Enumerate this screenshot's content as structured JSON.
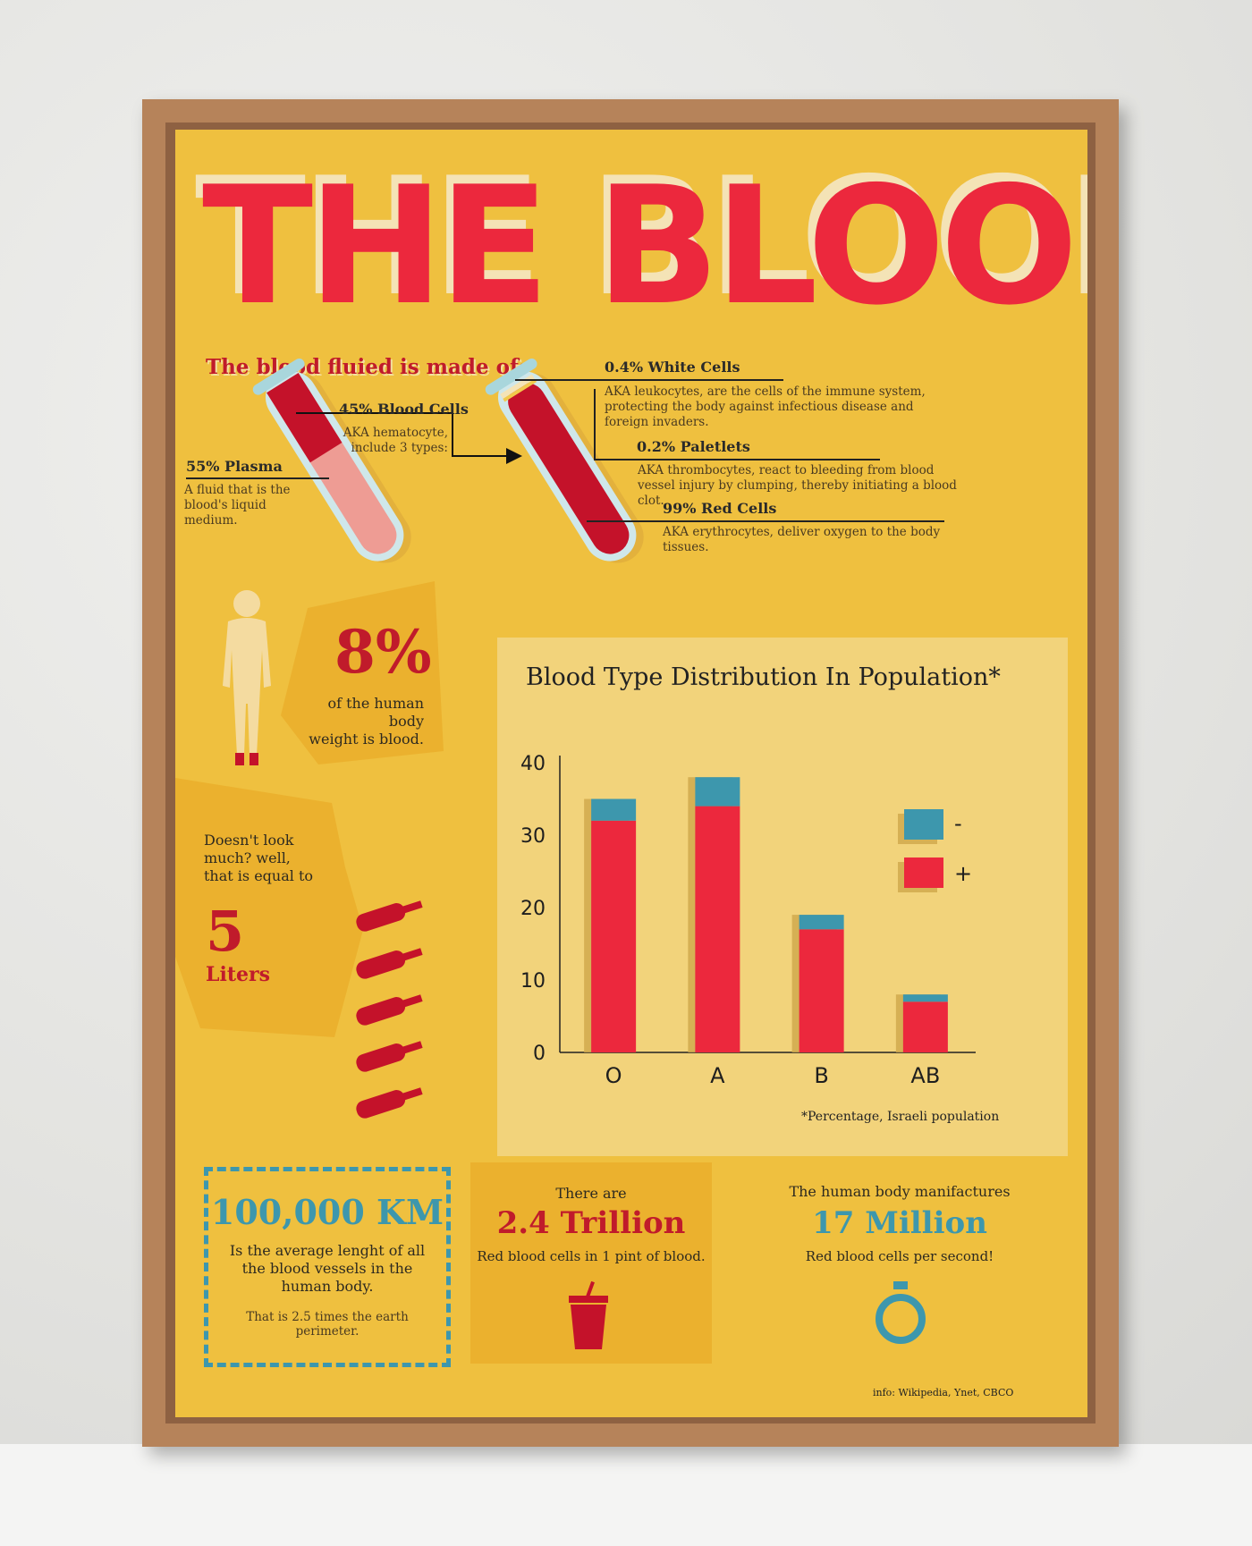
{
  "title": "THE BLOOD",
  "subtitle": "The blood fluied is made of:",
  "composition": {
    "plasma": {
      "label": "55% Plasma",
      "desc": "A fluid that is the blood's liquid medium."
    },
    "blood_cells": {
      "label": "45% Blood Cells",
      "desc_line1": "AKA hematocyte,",
      "desc_line2": "include 3 types:"
    },
    "white_cells": {
      "label": "0.4% White Cells",
      "desc": "AKA leukocytes, are the cells of the immune system, protecting the body against infectious disease and foreign invaders."
    },
    "platelets": {
      "label": "0.2% Paletlets",
      "desc": "AKA thrombocytes, react to bleeding from blood vessel injury by clumping, thereby initiating a blood clot."
    },
    "red_cells": {
      "label": "99% Red Cells",
      "desc": "AKA erythrocytes, deliver oxygen to the body tissues."
    }
  },
  "body_weight": {
    "value": "8%",
    "text_line1": "of the human body",
    "text_line2": "weight is blood."
  },
  "liters": {
    "text_line1": "Doesn't look",
    "text_line2": "much? well,",
    "text_line3": "that is equal to",
    "value": "5",
    "unit": "Liters"
  },
  "vessels": {
    "value": "100,000 KM",
    "text": "Is the average lenght of all the blood vessels in the human body.",
    "note": "That is 2.5 times the earth perimeter."
  },
  "trillion": {
    "pre": "There are",
    "value": "2.4 Trillion",
    "text": "Red blood cells in 1 pint of blood."
  },
  "million": {
    "pre": "The human body manifactures",
    "value": "17 Million",
    "text": "Red blood cells per second!"
  },
  "source": "info: Wikipedia, Ynet, CBCO",
  "colors": {
    "poster": "#efc03f",
    "red": "#ec283d",
    "dark_red": "#c01b2b",
    "blue": "#3d97ad",
    "panel": "#f2d37b"
  },
  "icons": {
    "person": "person-silhouette-icon",
    "bottle": "bottle-icon",
    "cup": "cup-icon",
    "stopwatch": "stopwatch-icon"
  },
  "chart_data": {
    "type": "bar",
    "title": "Blood Type Distribution In Population*",
    "categories": [
      "O",
      "A",
      "B",
      "AB"
    ],
    "series": [
      {
        "name": "+",
        "values": [
          32,
          34,
          17,
          7
        ],
        "color": "#ec283d"
      },
      {
        "name": "-",
        "values": [
          3,
          4,
          2,
          1
        ],
        "color": "#3d97ad"
      }
    ],
    "stacked": true,
    "ylim": [
      0,
      40
    ],
    "yticks": [
      0,
      10,
      20,
      30,
      40
    ],
    "legend": "top-right",
    "grid": false,
    "footnote": "*Percentage, Israeli population"
  }
}
